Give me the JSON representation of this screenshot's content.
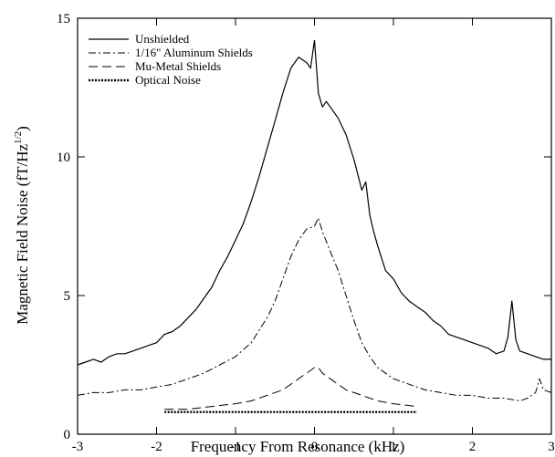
{
  "chart_data": {
    "type": "line",
    "xlabel": "Frequency From Resonance (kHz)",
    "ylabel": "Magnetic Field Noise (fT/Hz",
    "ylabel_sup": "1/2",
    "ylabel_close": ")",
    "xlim": [
      -3,
      3
    ],
    "ylim": [
      0,
      15
    ],
    "x_ticks": [
      -3,
      -2,
      -1,
      0,
      1,
      2,
      3
    ],
    "y_ticks": [
      0,
      5,
      10,
      15
    ],
    "grid": false,
    "legend_position": "top-left",
    "series": [
      {
        "name": "Unshielded",
        "style": "solid",
        "x": [
          -3.0,
          -2.9,
          -2.8,
          -2.7,
          -2.6,
          -2.5,
          -2.4,
          -2.3,
          -2.2,
          -2.1,
          -2.0,
          -1.9,
          -1.8,
          -1.7,
          -1.6,
          -1.5,
          -1.4,
          -1.3,
          -1.2,
          -1.1,
          -1.0,
          -0.9,
          -0.8,
          -0.7,
          -0.6,
          -0.5,
          -0.4,
          -0.3,
          -0.2,
          -0.15,
          -0.1,
          -0.05,
          0.0,
          0.05,
          0.1,
          0.15,
          0.2,
          0.3,
          0.4,
          0.5,
          0.6,
          0.65,
          0.7,
          0.75,
          0.8,
          0.9,
          1.0,
          1.1,
          1.2,
          1.3,
          1.4,
          1.5,
          1.6,
          1.7,
          1.8,
          1.9,
          2.0,
          2.1,
          2.2,
          2.3,
          2.4,
          2.45,
          2.5,
          2.55,
          2.6,
          2.7,
          2.8,
          2.9,
          3.0
        ],
        "y": [
          2.5,
          2.6,
          2.7,
          2.6,
          2.8,
          2.9,
          2.9,
          3.0,
          3.1,
          3.2,
          3.3,
          3.6,
          3.7,
          3.9,
          4.2,
          4.5,
          4.9,
          5.3,
          5.9,
          6.4,
          7.0,
          7.6,
          8.4,
          9.3,
          10.3,
          11.3,
          12.3,
          13.2,
          13.6,
          13.5,
          13.4,
          13.2,
          14.2,
          12.3,
          11.8,
          12.0,
          11.8,
          11.4,
          10.8,
          9.9,
          8.8,
          9.1,
          7.9,
          7.3,
          6.8,
          5.9,
          5.6,
          5.1,
          4.8,
          4.6,
          4.4,
          4.1,
          3.9,
          3.6,
          3.5,
          3.4,
          3.3,
          3.2,
          3.1,
          2.9,
          3.0,
          3.5,
          4.8,
          3.4,
          3.0,
          2.9,
          2.8,
          2.7,
          2.7
        ]
      },
      {
        "name": "1/16\" Aluminum Shields",
        "style": "dashdot",
        "x": [
          -3.0,
          -2.8,
          -2.6,
          -2.4,
          -2.2,
          -2.0,
          -1.8,
          -1.6,
          -1.4,
          -1.2,
          -1.0,
          -0.8,
          -0.6,
          -0.5,
          -0.4,
          -0.3,
          -0.2,
          -0.1,
          0.0,
          0.05,
          0.1,
          0.2,
          0.3,
          0.4,
          0.5,
          0.6,
          0.7,
          0.8,
          1.0,
          1.2,
          1.4,
          1.6,
          1.8,
          2.0,
          2.2,
          2.4,
          2.6,
          2.7,
          2.8,
          2.85,
          2.9,
          3.0
        ],
        "y": [
          1.4,
          1.5,
          1.5,
          1.6,
          1.6,
          1.7,
          1.8,
          2.0,
          2.2,
          2.5,
          2.8,
          3.3,
          4.2,
          4.8,
          5.6,
          6.4,
          7.0,
          7.4,
          7.5,
          7.8,
          7.3,
          6.6,
          5.9,
          5.0,
          4.1,
          3.3,
          2.8,
          2.4,
          2.0,
          1.8,
          1.6,
          1.5,
          1.4,
          1.4,
          1.3,
          1.3,
          1.2,
          1.3,
          1.5,
          2.0,
          1.6,
          1.5
        ]
      },
      {
        "name": "Mu-Metal Shields",
        "style": "dash",
        "x": [
          -1.9,
          -1.6,
          -1.3,
          -1.0,
          -0.8,
          -0.6,
          -0.4,
          -0.3,
          -0.2,
          -0.1,
          0.0,
          0.05,
          0.1,
          0.2,
          0.3,
          0.4,
          0.6,
          0.8,
          1.0,
          1.3
        ],
        "y": [
          0.9,
          0.9,
          1.0,
          1.1,
          1.2,
          1.4,
          1.6,
          1.8,
          2.0,
          2.2,
          2.4,
          2.4,
          2.2,
          2.0,
          1.8,
          1.6,
          1.4,
          1.2,
          1.1,
          1.0
        ]
      },
      {
        "name": "Optical Noise",
        "style": "dotted",
        "x": [
          -1.9,
          -1.5,
          -1.0,
          -0.5,
          0.0,
          0.5,
          1.0,
          1.3
        ],
        "y": [
          0.8,
          0.8,
          0.8,
          0.8,
          0.8,
          0.8,
          0.8,
          0.8
        ]
      }
    ]
  }
}
